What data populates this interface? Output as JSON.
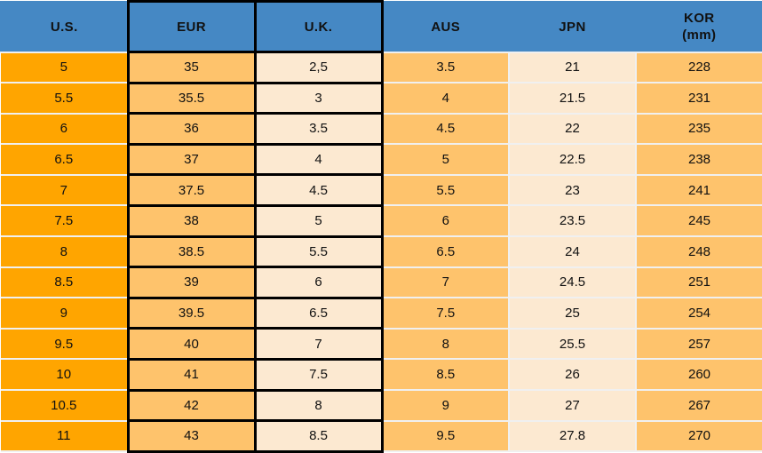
{
  "chart_data": {
    "type": "table",
    "columns": [
      {
        "label": "U.S."
      },
      {
        "label": "EUR"
      },
      {
        "label": "U.K."
      },
      {
        "label": "AUS"
      },
      {
        "label": "JPN"
      },
      {
        "label": "KOR",
        "sublabel": "(mm)"
      }
    ],
    "rows": [
      [
        "5",
        "35",
        "2,5",
        "3.5",
        "21",
        "228"
      ],
      [
        "5.5",
        "35.5",
        "3",
        "4",
        "21.5",
        "231"
      ],
      [
        "6",
        "36",
        "3.5",
        "4.5",
        "22",
        "235"
      ],
      [
        "6.5",
        "37",
        "4",
        "5",
        "22.5",
        "238"
      ],
      [
        "7",
        "37.5",
        "4.5",
        "5.5",
        "23",
        "241"
      ],
      [
        "7.5",
        "38",
        "5",
        "6",
        "23.5",
        "245"
      ],
      [
        "8",
        "38.5",
        "5.5",
        "6.5",
        "24",
        "248"
      ],
      [
        "8.5",
        "39",
        "6",
        "7",
        "24.5",
        "251"
      ],
      [
        "9",
        "39.5",
        "6.5",
        "7.5",
        "25",
        "254"
      ],
      [
        "9.5",
        "40",
        "7",
        "8",
        "25.5",
        "257"
      ],
      [
        "10",
        "41",
        "7.5",
        "8.5",
        "26",
        "260"
      ],
      [
        "10.5",
        "42",
        "8",
        "9",
        "27",
        "267"
      ],
      [
        "11",
        "43",
        "8.5",
        "9.5",
        "27.8",
        "270"
      ]
    ]
  },
  "colors": {
    "header_bg": "#4588C4",
    "us_orange": "#FFA500",
    "light_orange": "#FEC36C",
    "cream": "#FCE9D1",
    "gridline": "#F0F0F0",
    "border_black": "#000000",
    "text": "#111111"
  }
}
